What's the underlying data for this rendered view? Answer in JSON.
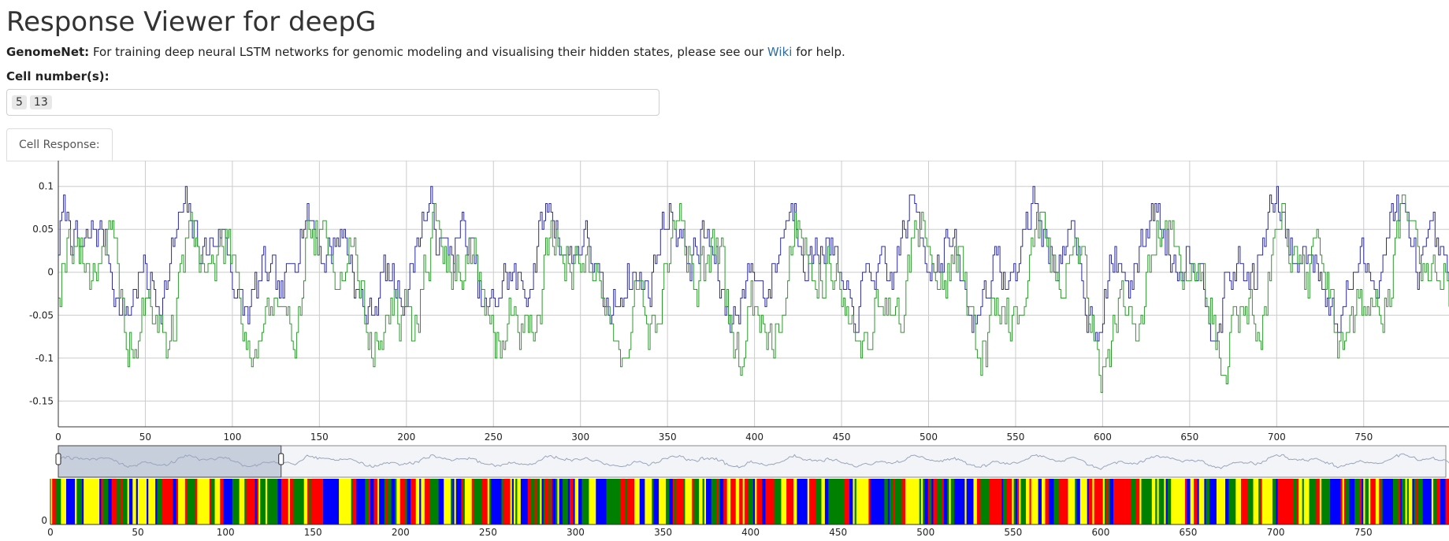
{
  "page": {
    "title": "Response Viewer for deepG",
    "intro": {
      "lead": "GenomeNet:",
      "text_before": " For training deep neural LSTM networks for genomic modeling and visualising their hidden states, please see our ",
      "link": "Wiki",
      "text_after": " for help."
    }
  },
  "cell_input": {
    "label": "Cell number(s):",
    "values": [
      "5",
      "13"
    ]
  },
  "tabs": [
    {
      "label": "Cell Response:",
      "active": true
    }
  ],
  "colors": {
    "series_blue": "#2b2b9c",
    "series_green": "#2e9a2e",
    "grid": "#cccccc",
    "nucleotides": [
      "#0000ff",
      "#ff0000",
      "#ffff00",
      "#008000"
    ]
  },
  "chart_data": {
    "type": "line",
    "step": true,
    "series": [
      {
        "color": "#2b2b9c"
      },
      {
        "color": "#2e9a2e"
      }
    ],
    "x_range": [
      0,
      799
    ],
    "ylim": [
      -0.18,
      0.13
    ],
    "y_ticks": [
      "0.1",
      "0.05",
      "0",
      "-0.05",
      "-0.1",
      "-0.15"
    ],
    "y_tick_values": [
      0.1,
      0.05,
      0,
      -0.05,
      -0.1,
      -0.15
    ],
    "x_ticks": [
      "0",
      "50",
      "100",
      "150",
      "200",
      "250",
      "300",
      "350",
      "400",
      "450",
      "500",
      "550",
      "600",
      "650",
      "700",
      "750"
    ],
    "x_tick_values": [
      0,
      50,
      100,
      150,
      200,
      250,
      300,
      350,
      400,
      450,
      500,
      550,
      600,
      650,
      700,
      750
    ],
    "grid": true,
    "range_selector": {
      "start": 0,
      "end": 128
    },
    "sequence_track": {
      "y_tick": "0"
    }
  }
}
